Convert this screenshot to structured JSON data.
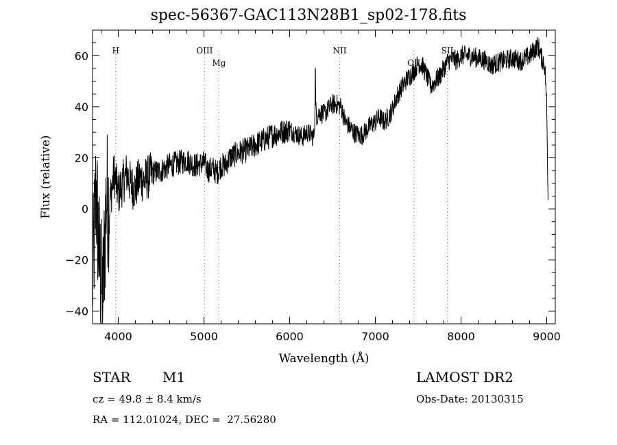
{
  "chart_data": {
    "type": "line",
    "title": "spec-56367-GAC113N28B1_sp02-178.fits",
    "xlabel": "Wavelength (Å)",
    "ylabel": "Flux (relative)",
    "xlim": [
      3700,
      9100
    ],
    "ylim": [
      -45,
      70
    ],
    "xticks": [
      4000,
      5000,
      6000,
      7000,
      8000,
      9000
    ],
    "yticks": [
      -40,
      -20,
      0,
      20,
      40,
      60
    ],
    "grid": false,
    "line_color": "#000000",
    "marker_color": "#cc4444",
    "lines": [
      {
        "name": "H",
        "x": 3970
      },
      {
        "name": "OIII",
        "x": 5007
      },
      {
        "name": "Mg",
        "x": 5175
      },
      {
        "name": "NII",
        "x": 6584
      },
      {
        "name": "OII",
        "x": 7450
      },
      {
        "name": "SII",
        "x": 7840
      }
    ],
    "series": [
      {
        "x": [
          3700,
          3740,
          3780,
          3820,
          3860,
          3900,
          3950,
          4000,
          4050,
          4100,
          4150,
          4200,
          4250,
          4300,
          4400,
          4500,
          4600,
          4700,
          4800,
          4900,
          5000,
          5050,
          5100,
          5150,
          5200,
          5250,
          5300,
          5400,
          5500,
          5600,
          5700,
          5800,
          5900,
          6000,
          6100,
          6150,
          6200,
          6250,
          6280,
          6300,
          6320,
          6350,
          6400,
          6450,
          6500,
          6550,
          6600,
          6650,
          6700,
          6750,
          6800,
          6850,
          6900,
          6950,
          7000,
          7050,
          7100,
          7150,
          7200,
          7250,
          7300,
          7350,
          7400,
          7450,
          7500,
          7550,
          7600,
          7650,
          7700,
          7750,
          7800,
          7850,
          7900,
          7950,
          8000,
          8100,
          8200,
          8300,
          8350,
          8400,
          8500,
          8600,
          8700,
          8800,
          8850,
          8900,
          8940,
          8960,
          8980,
          9000,
          9010,
          9020
        ],
        "y": [
          -30,
          8,
          -20,
          -35,
          5,
          2,
          14,
          6,
          10,
          14,
          9,
          8,
          12,
          11,
          14,
          15,
          17,
          18,
          19,
          17,
          18,
          15,
          16,
          14,
          17,
          17,
          20,
          22,
          23,
          25,
          27,
          29,
          30,
          31,
          29,
          28,
          30,
          29,
          28,
          40,
          36,
          38,
          37,
          39,
          41,
          41,
          40,
          34,
          32,
          30,
          29,
          29,
          31,
          33,
          34,
          36,
          34,
          36,
          39,
          44,
          47,
          50,
          52,
          54,
          57,
          56,
          52,
          48,
          50,
          52,
          55,
          58,
          59,
          58,
          60,
          60,
          59,
          58,
          56,
          57,
          58,
          59,
          58,
          60,
          62,
          64,
          59,
          58,
          55,
          40,
          15,
          2
        ]
      }
    ]
  },
  "info": {
    "object_type": "STAR",
    "object_class": "M1",
    "survey": "LAMOST DR2",
    "cz": "cz = 49.8 ± 8.4 km/s",
    "obs_date": "Obs-Date: 20130315",
    "radec": "RA = 112.01024, DEC =  27.56280"
  }
}
